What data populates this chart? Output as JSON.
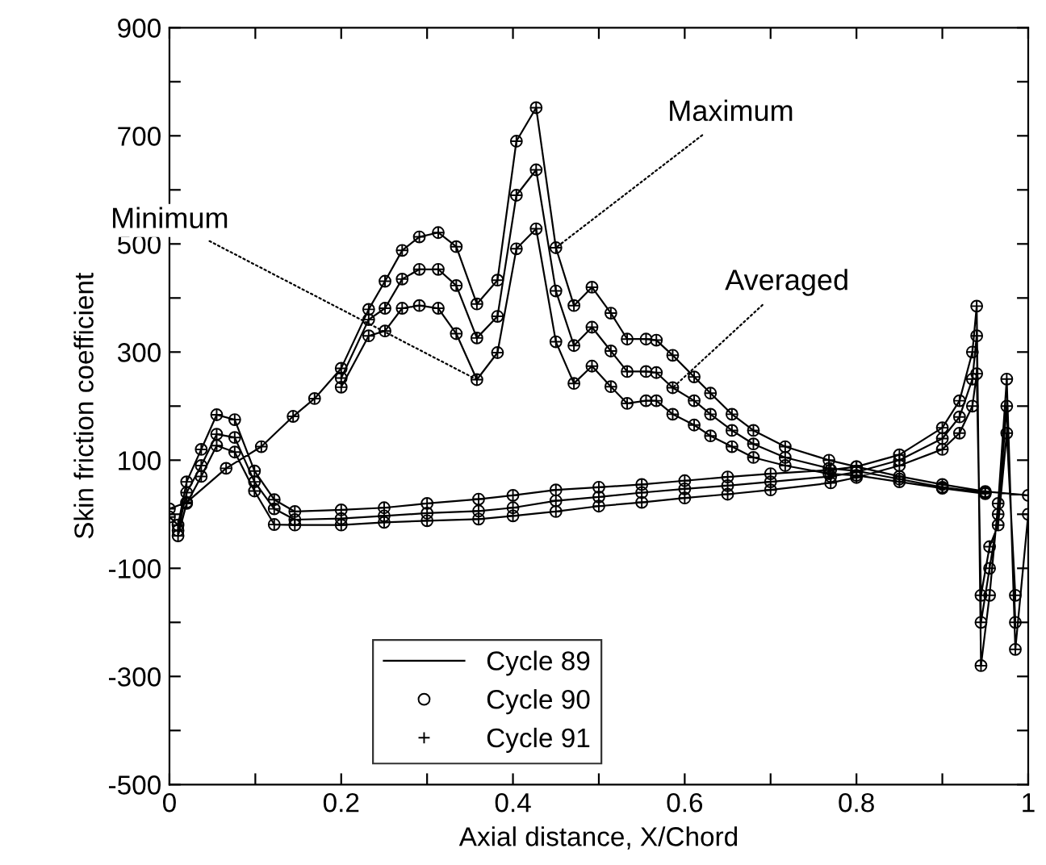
{
  "chart_data": {
    "type": "line",
    "xlabel": "Axial distance, X/Chord",
    "ylabel": "Skin friction coefficient",
    "xlim": [
      0,
      1
    ],
    "ylim": [
      -500,
      900
    ],
    "xticks": [
      0,
      {
        "value": 0.1,
        "label": null
      },
      0.2,
      {
        "value": 0.3,
        "label": null
      },
      0.4,
      {
        "value": 0.5,
        "label": null
      },
      0.6,
      {
        "value": 0.7,
        "label": null
      },
      0.8,
      {
        "value": 0.9,
        "label": null
      },
      1
    ],
    "yticks": [
      -500,
      {
        "value": -400,
        "label": null
      },
      -300,
      {
        "value": -200,
        "label": null
      },
      -100,
      {
        "value": 0,
        "label": null
      },
      100,
      {
        "value": 200,
        "label": null
      },
      300,
      {
        "value": 400,
        "label": null
      },
      500,
      {
        "value": 600,
        "label": null
      },
      700,
      {
        "value": 800,
        "label": null
      },
      900
    ],
    "grid": false,
    "legend": "bottom",
    "x": [
      0,
      0.02,
      0.066,
      0.107,
      0.144,
      0.169,
      0.2,
      0.232,
      0.251,
      0.271,
      0.291,
      0.313,
      0.334,
      0.358,
      0.382,
      0.404,
      0.427,
      0.45,
      0.471,
      0.492,
      0.514,
      0.533,
      0.555,
      0.567,
      0.586,
      0.611,
      0.63,
      0.655,
      0.68,
      0.717,
      0.768,
      0.8,
      0.85,
      0.9,
      0.95,
      1,
      null,
      0.2,
      0.232,
      0.251,
      0.271,
      0.291,
      0.313,
      0.334,
      0.358,
      0.382,
      0.404,
      0.427,
      0.45,
      0.471,
      0.492,
      0.514,
      0.533,
      0.555,
      0.567,
      0.586,
      0.611,
      0.63,
      0.655,
      0.68,
      0.717,
      0.768,
      0.8,
      0.85,
      0.9,
      0.95,
      null,
      0.2,
      0.232,
      0.251,
      0.271,
      0.291,
      0.313,
      0.334,
      0.358,
      0.382,
      0.404,
      0.427,
      0.45,
      0.471,
      0.492,
      0.514,
      0.533,
      0.555,
      0.567,
      0.586,
      0.611,
      0.63,
      0.655,
      0.68,
      0.717,
      0.768,
      0.8,
      0.85,
      0.9,
      0.95,
      null,
      0,
      0.01,
      0.02,
      0.037,
      0.055,
      0.076,
      0.099,
      0.122,
      0.146,
      0.2,
      0.25,
      0.3,
      0.36,
      0.4,
      0.45,
      0.5,
      0.55,
      0.6,
      0.65,
      0.7,
      0.77,
      0.8,
      0.85,
      0.9,
      0.92,
      0.935,
      0.94,
      0.945,
      0.955,
      0.965,
      0.975,
      0.985,
      1,
      null,
      0.01,
      0.02,
      0.037,
      0.055,
      0.076,
      0.099,
      0.122,
      0.146,
      0.2,
      0.25,
      0.3,
      0.36,
      0.4,
      0.45,
      0.5,
      0.55,
      0.6,
      0.65,
      0.7,
      0.77,
      0.8,
      0.85,
      0.9,
      0.92,
      0.935,
      0.94,
      0.945,
      0.955,
      0.965,
      0.975,
      0.985,
      null,
      0.01,
      0.02,
      0.037,
      0.055,
      0.076,
      0.099,
      0.122,
      0.146,
      0.2,
      0.25,
      0.3,
      0.36,
      0.4,
      0.45,
      0.5,
      0.55,
      0.6,
      0.65,
      0.7,
      0.77,
      0.8,
      0.85,
      0.9,
      0.92,
      0.935,
      0.94,
      0.945,
      0.955,
      0.965,
      0.975,
      0.985
    ],
    "series": [
      {
        "name": "Cycle 89",
        "marker": "none",
        "line_style": "solid",
        "color": "#000000",
        "values": [
          10,
          22,
          85,
          125,
          181,
          214,
          270,
          379,
          431,
          488,
          513,
          521,
          495,
          389,
          433,
          690,
          752,
          493,
          386,
          420,
          372,
          324,
          324,
          322,
          294,
          254,
          224,
          185,
          155,
          125,
          100,
          88,
          70,
          55,
          42,
          35,
          null,
          252,
          360,
          381,
          435,
          453,
          453,
          423,
          326,
          366,
          590,
          637,
          413,
          312,
          346,
          302,
          264,
          264,
          262,
          234,
          210,
          185,
          155,
          130,
          105,
          85,
          80,
          65,
          50,
          40,
          null,
          235,
          330,
          339,
          381,
          386,
          381,
          334,
          249,
          299,
          491,
          528,
          319,
          242,
          274,
          236,
          205,
          210,
          210,
          185,
          165,
          145,
          125,
          105,
          90,
          75,
          72,
          60,
          48,
          38,
          null,
          -5,
          -20,
          60,
          120,
          184,
          175,
          80,
          27,
          5,
          8,
          12,
          20,
          28,
          35,
          45,
          50,
          55,
          62,
          69,
          75,
          82,
          88,
          110,
          160,
          210,
          300,
          385,
          -280,
          -150,
          20,
          250,
          -250,
          0,
          null,
          -30,
          40,
          90,
          148,
          142,
          60,
          10,
          -10,
          -8,
          -3,
          2,
          6,
          12,
          25,
          32,
          40,
          47,
          53,
          60,
          70,
          78,
          100,
          140,
          180,
          250,
          330,
          -200,
          -100,
          0,
          200,
          -200,
          null,
          -40,
          20,
          70,
          127,
          115,
          43,
          -19,
          -20,
          -20,
          -15,
          -12,
          -9,
          -3,
          5,
          15,
          22,
          30,
          37,
          45,
          58,
          68,
          90,
          120,
          150,
          200,
          260,
          -150,
          -60,
          -20,
          150,
          -150
        ]
      },
      {
        "name": "Cycle 90",
        "type": "scatter",
        "marker": "circle",
        "color": "#000000",
        "values": [
          10,
          22,
          85,
          125,
          181,
          214,
          270,
          379,
          431,
          488,
          513,
          521,
          495,
          389,
          433,
          690,
          752,
          493,
          386,
          420,
          372,
          324,
          324,
          322,
          294,
          254,
          224,
          185,
          155,
          125,
          100,
          88,
          70,
          55,
          42,
          35,
          null,
          252,
          360,
          381,
          435,
          453,
          453,
          423,
          326,
          366,
          590,
          637,
          413,
          312,
          346,
          302,
          264,
          264,
          262,
          234,
          210,
          185,
          155,
          130,
          105,
          85,
          80,
          65,
          50,
          40,
          null,
          235,
          330,
          339,
          381,
          386,
          381,
          334,
          249,
          299,
          491,
          528,
          319,
          242,
          274,
          236,
          205,
          210,
          210,
          185,
          165,
          145,
          125,
          105,
          90,
          75,
          72,
          60,
          48,
          38,
          null,
          -5,
          -20,
          60,
          120,
          184,
          175,
          80,
          27,
          5,
          8,
          12,
          20,
          28,
          35,
          45,
          50,
          55,
          62,
          69,
          75,
          82,
          88,
          110,
          160,
          210,
          300,
          385,
          -280,
          -150,
          20,
          250,
          -250,
          0,
          null,
          -30,
          40,
          90,
          148,
          142,
          60,
          10,
          -10,
          -8,
          -3,
          2,
          6,
          12,
          25,
          32,
          40,
          47,
          53,
          60,
          70,
          78,
          100,
          140,
          180,
          250,
          330,
          -200,
          -100,
          0,
          200,
          -200,
          null,
          -40,
          20,
          70,
          127,
          115,
          43,
          -19,
          -20,
          -20,
          -15,
          -12,
          -9,
          -3,
          5,
          15,
          22,
          30,
          37,
          45,
          58,
          68,
          90,
          120,
          150,
          200,
          260,
          -150,
          -60,
          -20,
          150,
          -150
        ]
      },
      {
        "name": "Cycle 91",
        "type": "scatter",
        "marker": "cross",
        "color": "#000000",
        "values": [
          10,
          22,
          85,
          125,
          181,
          214,
          270,
          379,
          431,
          488,
          513,
          521,
          495,
          389,
          433,
          690,
          752,
          493,
          386,
          420,
          372,
          324,
          324,
          322,
          294,
          254,
          224,
          185,
          155,
          125,
          100,
          88,
          70,
          55,
          42,
          35,
          null,
          252,
          360,
          381,
          435,
          453,
          453,
          423,
          326,
          366,
          590,
          637,
          413,
          312,
          346,
          302,
          264,
          264,
          262,
          234,
          210,
          185,
          155,
          130,
          105,
          85,
          80,
          65,
          50,
          40,
          null,
          235,
          330,
          339,
          381,
          386,
          381,
          334,
          249,
          299,
          491,
          528,
          319,
          242,
          274,
          236,
          205,
          210,
          210,
          185,
          165,
          145,
          125,
          105,
          90,
          75,
          72,
          60,
          48,
          38,
          null,
          -5,
          -20,
          60,
          120,
          184,
          175,
          80,
          27,
          5,
          8,
          12,
          20,
          28,
          35,
          45,
          50,
          55,
          62,
          69,
          75,
          82,
          88,
          110,
          160,
          210,
          300,
          385,
          -280,
          -150,
          20,
          250,
          -250,
          0,
          null,
          -30,
          40,
          90,
          148,
          142,
          60,
          10,
          -10,
          -8,
          -3,
          2,
          6,
          12,
          25,
          32,
          40,
          47,
          53,
          60,
          70,
          78,
          100,
          140,
          180,
          250,
          330,
          -200,
          -100,
          0,
          200,
          -200,
          null,
          -40,
          20,
          70,
          127,
          115,
          43,
          -19,
          -20,
          -20,
          -15,
          -12,
          -9,
          -3,
          5,
          15,
          22,
          30,
          37,
          45,
          58,
          68,
          90,
          120,
          150,
          200,
          260,
          -150,
          -60,
          -20,
          150,
          -150
        ]
      }
    ],
    "annotations": [
      {
        "text": "Minimum",
        "x": 0.358,
        "y": 249
      },
      {
        "text": "Maximum",
        "x": 0.45,
        "y": 493
      },
      {
        "text": "Averaged",
        "x": 0.586,
        "y": 234
      }
    ]
  }
}
